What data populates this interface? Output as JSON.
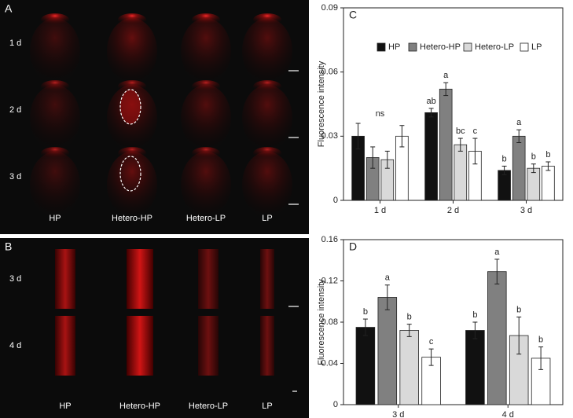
{
  "panels": [
    {
      "label": "A",
      "rows": [
        "1 d",
        "2 d",
        "3 d"
      ],
      "columns": [
        "HP",
        "Hetero-HP",
        "Hetero-LP",
        "LP"
      ]
    },
    {
      "label": "B",
      "rows": [
        "3 d",
        "4 d"
      ],
      "columns": [
        "HP",
        "Hetero-HP",
        "Hetero-LP",
        "LP"
      ]
    }
  ],
  "chart_data": [
    {
      "type": "bar",
      "panel": "C",
      "ylabel": "Fluorescence intensity",
      "categories": [
        "1 d",
        "2 d",
        "3 d"
      ],
      "ylim": [
        0,
        0.09
      ],
      "yticks": [
        0,
        0.03,
        0.06,
        0.09
      ],
      "legend": "top",
      "group_labels": [
        "ns",
        null,
        null
      ],
      "series": [
        {
          "name": "HP",
          "color": "#111111",
          "values": [
            0.03,
            0.041,
            0.014
          ],
          "errors": [
            0.006,
            0.002,
            0.002
          ],
          "labels": [
            null,
            "ab",
            "b"
          ]
        },
        {
          "name": "Hetero-HP",
          "color": "#808080",
          "values": [
            0.02,
            0.052,
            0.03
          ],
          "errors": [
            0.005,
            0.003,
            0.003
          ],
          "labels": [
            null,
            "a",
            "a"
          ]
        },
        {
          "name": "Hetero-LP",
          "color": "#d9d9d9",
          "values": [
            0.019,
            0.026,
            0.015
          ],
          "errors": [
            0.004,
            0.003,
            0.002
          ],
          "labels": [
            null,
            "bc",
            "b"
          ]
        },
        {
          "name": "LP",
          "color": "#ffffff",
          "values": [
            0.03,
            0.023,
            0.016
          ],
          "errors": [
            0.005,
            0.006,
            0.002
          ],
          "labels": [
            null,
            "c",
            "b"
          ]
        }
      ]
    },
    {
      "type": "bar",
      "panel": "D",
      "ylabel": "Fluorescence intensity",
      "categories": [
        "3 d",
        "4 d"
      ],
      "ylim": [
        0,
        0.16
      ],
      "yticks": [
        0,
        0.04,
        0.08,
        0.12,
        0.16
      ],
      "series": [
        {
          "name": "HP",
          "color": "#111111",
          "values": [
            0.075,
            0.072
          ],
          "errors": [
            0.008,
            0.008
          ],
          "labels": [
            "b",
            "b"
          ]
        },
        {
          "name": "Hetero-HP",
          "color": "#808080",
          "values": [
            0.104,
            0.129
          ],
          "errors": [
            0.012,
            0.012
          ],
          "labels": [
            "a",
            "a"
          ]
        },
        {
          "name": "Hetero-LP",
          "color": "#d9d9d9",
          "values": [
            0.072,
            0.067
          ],
          "errors": [
            0.006,
            0.018
          ],
          "labels": [
            "b",
            "b"
          ]
        },
        {
          "name": "LP",
          "color": "#ffffff",
          "values": [
            0.046,
            0.045
          ],
          "errors": [
            0.008,
            0.011
          ],
          "labels": [
            "c",
            "b"
          ]
        }
      ]
    }
  ]
}
